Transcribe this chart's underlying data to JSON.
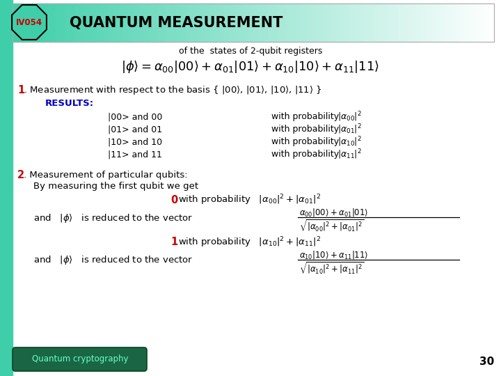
{
  "bg_color": "#ffffff",
  "left_bar_color": "#3ecfaa",
  "octagon_color": "#3ecfaa",
  "octagon_border": "#000000",
  "title_iv": "IV054",
  "title_iv_color": "#cc0000",
  "title_main": "QUANTUM MEASUREMENT",
  "title_main_color": "#000000",
  "header_border_color": "#aaaaaa",
  "footer_bg": "#1a6644",
  "footer_text": "Quantum cryptography",
  "footer_text_color": "#66ffcc",
  "page_number": "30",
  "subtitle": "of the  states of 2-qubit registers"
}
